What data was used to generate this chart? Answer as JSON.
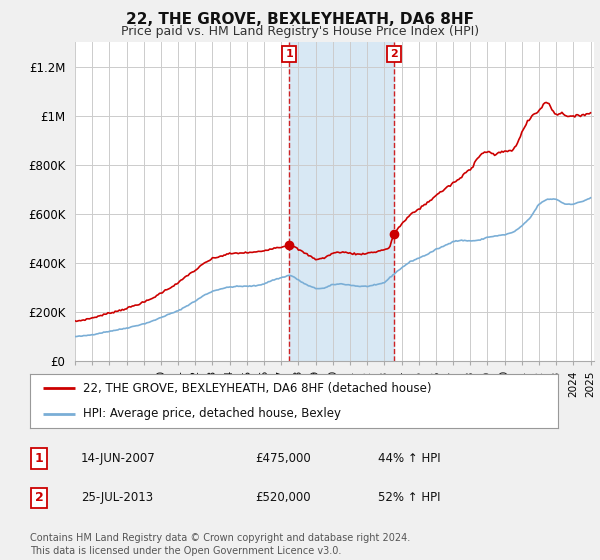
{
  "title": "22, THE GROVE, BEXLEYHEATH, DA6 8HF",
  "subtitle": "Price paid vs. HM Land Registry's House Price Index (HPI)",
  "ylabel_ticks": [
    "£0",
    "£200K",
    "£400K",
    "£600K",
    "£800K",
    "£1M",
    "£1.2M"
  ],
  "ylim": [
    0,
    1300000
  ],
  "xlim_start": 1995.0,
  "xlim_end": 2025.2,
  "line1_label": "22, THE GROVE, BEXLEYHEATH, DA6 8HF (detached house)",
  "line2_label": "HPI: Average price, detached house, Bexley",
  "line1_color": "#cc0000",
  "line2_color": "#7aaed6",
  "marker1_date": 2007.46,
  "marker1_price": 475000,
  "marker1_label": "1",
  "marker2_date": 2013.56,
  "marker2_price": 520000,
  "marker2_label": "2",
  "shade_color": "#d8e8f4",
  "background_color": "#f0f0f0",
  "plot_background": "#ffffff",
  "grid_color": "#cccccc",
  "footnote": "Contains HM Land Registry data © Crown copyright and database right 2024.\nThis data is licensed under the Open Government Licence v3.0."
}
